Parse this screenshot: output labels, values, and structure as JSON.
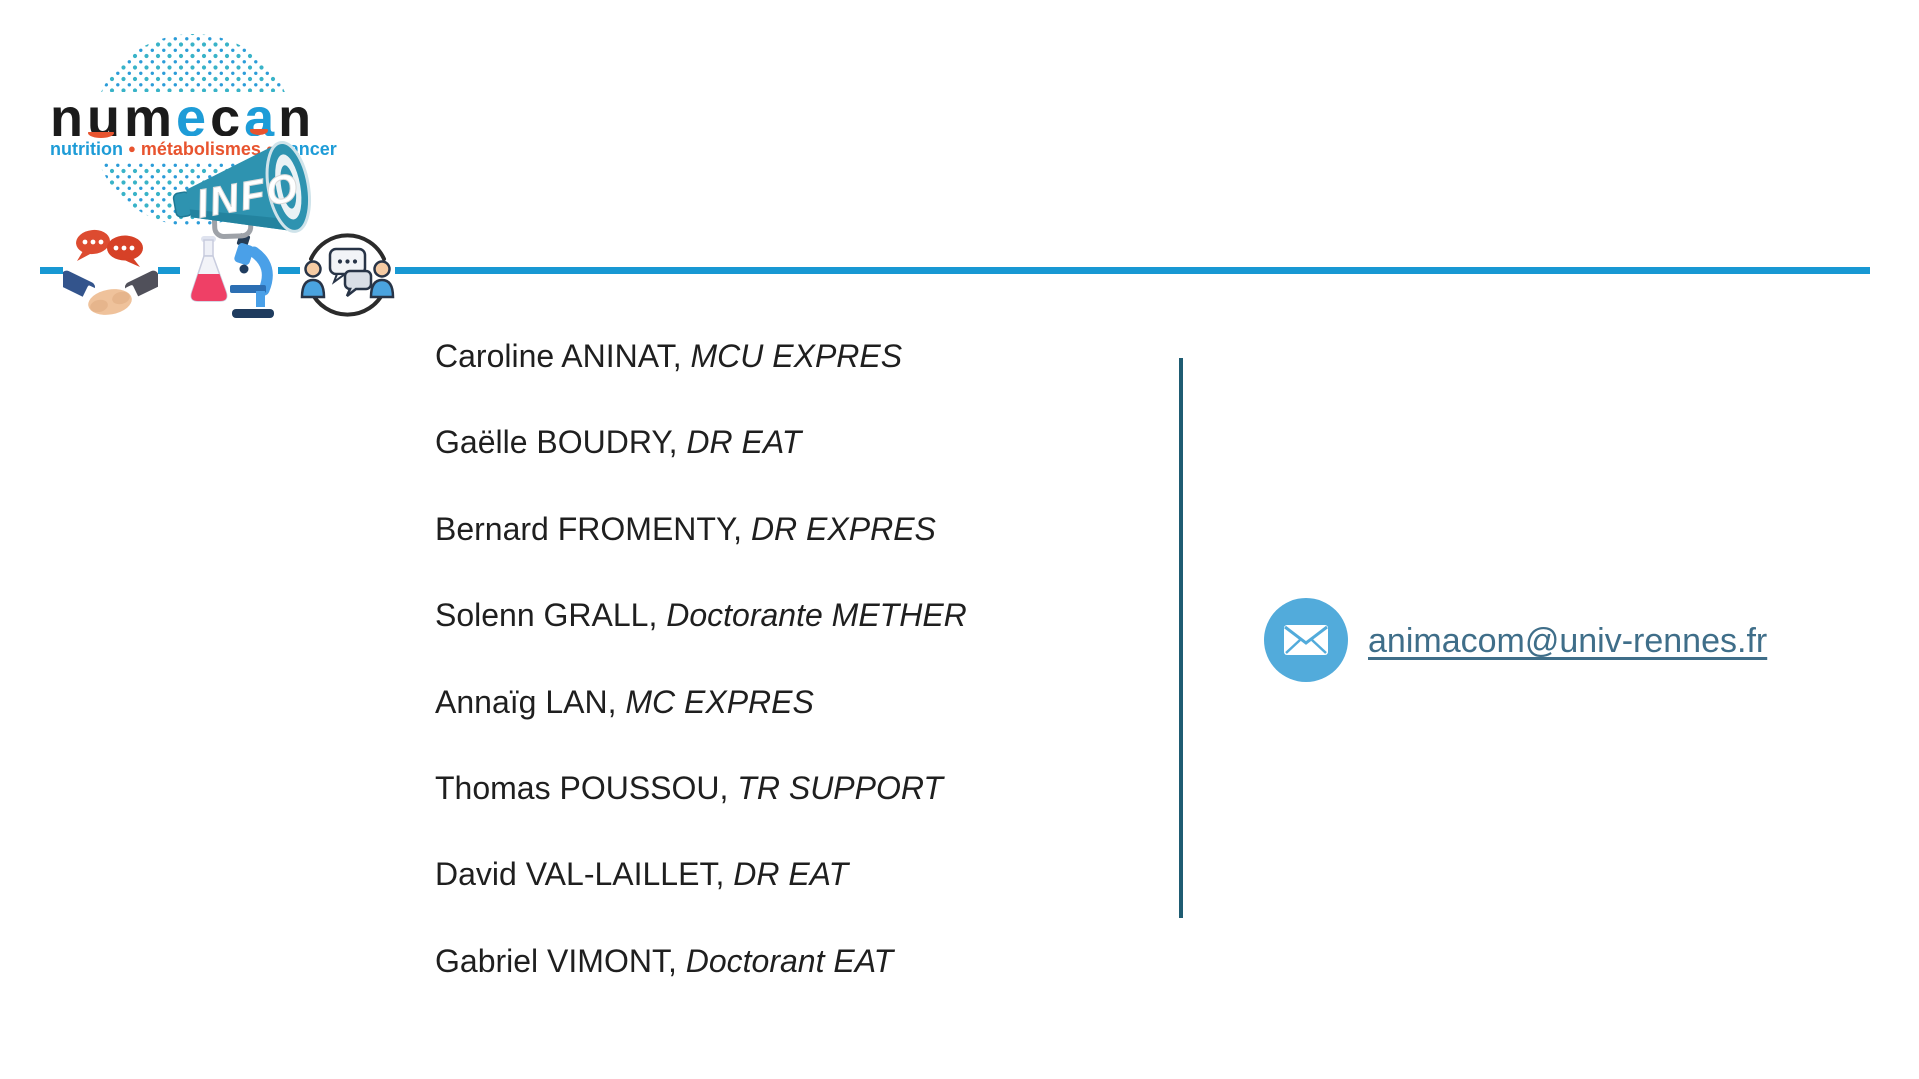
{
  "slide": {
    "logo": {
      "brand_letters": [
        {
          "ch": "n",
          "color": "#1b1b1b"
        },
        {
          "ch": "u",
          "color": "#1b1b1b"
        },
        {
          "ch": "m",
          "color": "#1b1b1b"
        },
        {
          "ch": "e",
          "color": "#1E9CD7"
        },
        {
          "ch": "c",
          "color": "#1b1b1b"
        },
        {
          "ch": "a",
          "color": "#1E9CD7"
        },
        {
          "ch": "n",
          "color": "#1b1b1b"
        }
      ],
      "tagline": {
        "word1": "nutrition",
        "sep": "●",
        "word2": "métabolismes",
        "word3": "cancer"
      },
      "megaphone_label": "INFO"
    },
    "icons": [
      "speech-bubbles-handshake-icon",
      "flask-and-microscope-icon",
      "people-discussion-circle-icon"
    ],
    "members_separator": ", ",
    "members": [
      {
        "name": "Caroline ANINAT",
        "role": "MCU EXPRES"
      },
      {
        "name": "Gaëlle BOUDRY",
        "role": "DR EAT"
      },
      {
        "name": "Bernard FROMENTY",
        "role": "DR EXPRES"
      },
      {
        "name": "Solenn GRALL",
        "role": "Doctorante METHER"
      },
      {
        "name": "Annaïg LAN",
        "role": "MC EXPRES"
      },
      {
        "name": "Thomas POUSSOU",
        "role": "TR SUPPORT"
      },
      {
        "name": "David VAL-LAILLET",
        "role": "DR EAT"
      },
      {
        "name": "Gabriel VIMONT",
        "role": "Doctorant EAT"
      }
    ],
    "contact": {
      "email": "animacom@univ-rennes.fr",
      "icon": "envelope-icon"
    },
    "colors": {
      "rule_blue": "#1898D3",
      "divider_teal": "#1F5C72",
      "brand_blue": "#1E9CD7",
      "brand_orange": "#E8542F",
      "megaphone_teal": "#2E93B0",
      "email_icon_bg": "#52ABDB",
      "email_text": "#3F6E89",
      "text_dark": "#1F1F1F"
    }
  }
}
